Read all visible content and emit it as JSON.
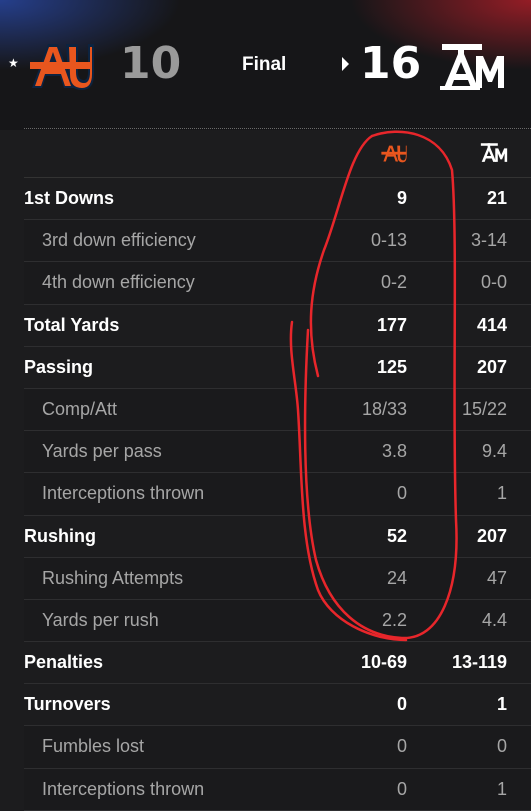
{
  "game": {
    "away_score": "10",
    "home_score": "16",
    "status": "Final",
    "away_logo_text": "AU",
    "home_logo_text": "ATM"
  },
  "rows": [
    {
      "label": "1st Downs",
      "type": "main",
      "away": "9",
      "home": "21"
    },
    {
      "label": "3rd down efficiency",
      "type": "sub",
      "away": "0-13",
      "home": "3-14"
    },
    {
      "label": "4th down efficiency",
      "type": "sub",
      "away": "0-2",
      "home": "0-0"
    },
    {
      "label": "Total Yards",
      "type": "main",
      "away": "177",
      "home": "414"
    },
    {
      "label": "Passing",
      "type": "main",
      "away": "125",
      "home": "207"
    },
    {
      "label": "Comp/Att",
      "type": "sub",
      "away": "18/33",
      "home": "15/22"
    },
    {
      "label": "Yards per pass",
      "type": "sub",
      "away": "3.8",
      "home": "9.4"
    },
    {
      "label": "Interceptions thrown",
      "type": "sub",
      "away": "0",
      "home": "1"
    },
    {
      "label": "Rushing",
      "type": "main",
      "away": "52",
      "home": "207"
    },
    {
      "label": "Rushing Attempts",
      "type": "sub",
      "away": "24",
      "home": "47"
    },
    {
      "label": "Yards per rush",
      "type": "sub",
      "away": "2.2",
      "home": "4.4"
    },
    {
      "label": "Penalties",
      "type": "main",
      "away": "10-69",
      "home": "13-119"
    },
    {
      "label": "Turnovers",
      "type": "main",
      "away": "0",
      "home": "1"
    },
    {
      "label": "Fumbles lost",
      "type": "sub",
      "away": "0",
      "home": "0"
    },
    {
      "label": "Interceptions thrown",
      "type": "sub",
      "away": "0",
      "home": "1"
    }
  ],
  "colors": {
    "auburn_orange": "#e8561e",
    "auburn_navy": "#0c2340",
    "annotation_red": "#e8262b"
  },
  "icons": {
    "away_team": "auburn-logo-icon",
    "home_team": "texas-am-logo-icon",
    "winner": "winner-arrow-icon",
    "favorite": "star-icon"
  }
}
